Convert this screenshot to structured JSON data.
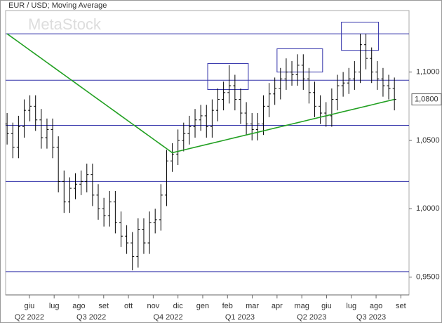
{
  "chart_data": {
    "type": "ohlc",
    "title": "EUR / USD; Moving Average",
    "watermark": "MetaStock",
    "x": [
      -0.9,
      -0.67,
      -0.44,
      -0.21,
      0.02,
      0.25,
      0.48,
      0.71,
      0.94,
      1.17,
      1.4,
      1.63,
      1.86,
      2.09,
      2.32,
      2.55,
      2.78,
      3.01,
      3.24,
      3.47,
      3.7,
      3.93,
      4.16,
      4.39,
      4.62,
      4.85,
      5.08,
      5.31,
      5.54,
      5.77,
      6.0,
      6.23,
      6.46,
      6.69,
      6.92,
      7.15,
      7.38,
      7.61,
      7.84,
      8.07,
      8.3,
      8.53,
      8.76,
      8.99,
      9.22,
      9.45,
      9.68,
      9.91,
      10.14,
      10.37,
      10.6,
      10.83,
      11.06,
      11.29,
      11.52,
      11.75,
      11.98,
      12.21,
      12.44,
      12.67,
      12.9,
      13.13,
      13.36,
      13.59,
      13.82,
      14.05,
      14.28,
      14.51,
      14.74
    ],
    "open": [
      1.062,
      1.055,
      1.045,
      1.06,
      1.072,
      1.075,
      1.065,
      1.052,
      1.058,
      1.045,
      1.02,
      1.005,
      1.015,
      1.018,
      1.02,
      1.025,
      1.01,
      1.0,
      0.995,
      1.005,
      0.99,
      0.98,
      0.975,
      0.965,
      0.985,
      0.975,
      0.99,
      0.992,
      1.01,
      1.035,
      1.04,
      1.05,
      1.055,
      1.06,
      1.065,
      1.068,
      1.06,
      1.072,
      1.08,
      1.085,
      1.09,
      1.08,
      1.07,
      1.062,
      1.058,
      1.062,
      1.075,
      1.084,
      1.088,
      1.095,
      1.1,
      1.098,
      1.105,
      1.095,
      1.085,
      1.075,
      1.07,
      1.068,
      1.08,
      1.09,
      1.092,
      1.095,
      1.1,
      1.12,
      1.11,
      1.1,
      1.095,
      1.09,
      1.088
    ],
    "high": [
      1.07,
      1.063,
      1.068,
      1.08,
      1.083,
      1.083,
      1.073,
      1.066,
      1.066,
      1.053,
      1.028,
      1.023,
      1.026,
      1.028,
      1.033,
      1.033,
      1.018,
      1.008,
      1.013,
      1.013,
      0.998,
      0.988,
      0.983,
      0.993,
      0.993,
      0.998,
      1.0,
      1.018,
      1.043,
      1.048,
      1.058,
      1.063,
      1.068,
      1.073,
      1.076,
      1.076,
      1.08,
      1.088,
      1.093,
      1.105,
      1.098,
      1.088,
      1.078,
      1.07,
      1.07,
      1.083,
      1.092,
      1.096,
      1.103,
      1.11,
      1.108,
      1.113,
      1.113,
      1.103,
      1.093,
      1.083,
      1.078,
      1.088,
      1.098,
      1.1,
      1.103,
      1.108,
      1.128,
      1.128,
      1.118,
      1.108,
      1.103,
      1.098,
      1.096
    ],
    "low": [
      1.047,
      1.037,
      1.037,
      1.052,
      1.064,
      1.057,
      1.044,
      1.044,
      1.037,
      1.012,
      0.997,
      0.997,
      1.007,
      1.01,
      1.012,
      1.002,
      0.992,
      0.987,
      0.987,
      0.982,
      0.972,
      0.967,
      0.955,
      0.957,
      0.967,
      0.967,
      0.982,
      0.984,
      1.002,
      1.027,
      1.032,
      1.042,
      1.047,
      1.052,
      1.057,
      1.052,
      1.052,
      1.064,
      1.072,
      1.077,
      1.072,
      1.062,
      1.054,
      1.05,
      1.05,
      1.054,
      1.067,
      1.076,
      1.08,
      1.087,
      1.09,
      1.09,
      1.087,
      1.077,
      1.067,
      1.062,
      1.06,
      1.06,
      1.072,
      1.082,
      1.084,
      1.087,
      1.092,
      1.102,
      1.092,
      1.087,
      1.082,
      1.08,
      1.072
    ],
    "close": [
      1.055,
      1.045,
      1.06,
      1.072,
      1.075,
      1.065,
      1.052,
      1.058,
      1.045,
      1.02,
      1.005,
      1.015,
      1.018,
      1.02,
      1.025,
      1.01,
      1.0,
      0.995,
      1.005,
      0.99,
      0.98,
      0.975,
      0.965,
      0.985,
      0.975,
      0.99,
      0.992,
      1.01,
      1.035,
      1.04,
      1.05,
      1.055,
      1.06,
      1.065,
      1.068,
      1.06,
      1.072,
      1.08,
      1.085,
      1.09,
      1.08,
      1.07,
      1.062,
      1.058,
      1.062,
      1.075,
      1.084,
      1.088,
      1.095,
      1.1,
      1.098,
      1.105,
      1.095,
      1.085,
      1.075,
      1.07,
      1.068,
      1.08,
      1.09,
      1.092,
      1.095,
      1.1,
      1.12,
      1.11,
      1.1,
      1.095,
      1.09,
      1.088,
      1.08
    ],
    "bar_color": "#000000",
    "ma": {
      "color": "#22a022",
      "values": [
        1.128,
        1.125,
        1.122,
        1.119,
        1.116,
        1.113,
        1.11,
        1.107,
        1.104,
        1.101,
        1.098,
        1.095,
        1.092,
        1.089,
        1.086,
        1.083,
        1.08,
        1.077,
        1.074,
        1.071,
        1.068,
        1.065,
        1.062,
        1.059,
        1.056,
        1.053,
        1.05,
        1.047,
        1.044,
        1.041,
        1.042,
        1.043,
        1.044,
        1.045,
        1.046,
        1.047,
        1.048,
        1.049,
        1.05,
        1.051,
        1.052,
        1.053,
        1.054,
        1.055,
        1.056,
        1.057,
        1.058,
        1.059,
        1.06,
        1.061,
        1.062,
        1.063,
        1.064,
        1.065,
        1.066,
        1.067,
        1.068,
        1.069,
        1.07,
        1.071,
        1.072,
        1.073,
        1.074,
        1.075,
        1.076,
        1.077,
        1.078,
        1.079,
        1.08
      ]
    },
    "levels": [
      1.128,
      1.094,
      1.061,
      1.02,
      0.954
    ],
    "level_color": "#3333aa",
    "boxes": [
      {
        "x": [
          7.2,
          8.84
        ],
        "y": [
          1.0872,
          1.1062
        ]
      },
      {
        "x": [
          10.0,
          11.84
        ],
        "y": [
          1.1,
          1.117
        ]
      },
      {
        "x": [
          12.6,
          14.1
        ],
        "y": [
          1.1159,
          1.1365
        ]
      }
    ],
    "last_price": {
      "value": 1.08,
      "label": "1,0800"
    },
    "xlim": [
      -0.96,
      15.33
    ],
    "ylim": [
      0.937,
      1.145
    ],
    "xticks": [
      {
        "value": 0,
        "label": "giu"
      },
      {
        "value": 1,
        "label": "lug"
      },
      {
        "value": 2,
        "label": "ago"
      },
      {
        "value": 3,
        "label": "set"
      },
      {
        "value": 4,
        "label": "ott"
      },
      {
        "value": 5,
        "label": "nov"
      },
      {
        "value": 6,
        "label": "dic"
      },
      {
        "value": 7,
        "label": "gen"
      },
      {
        "value": 8,
        "label": "feb"
      },
      {
        "value": 9,
        "label": "mar"
      },
      {
        "value": 10,
        "label": "apr"
      },
      {
        "value": 11,
        "label": "mag"
      },
      {
        "value": 12,
        "label": "giu"
      },
      {
        "value": 13,
        "label": "lug"
      },
      {
        "value": 14,
        "label": "ago"
      },
      {
        "value": 15,
        "label": "set"
      }
    ],
    "quarters": [
      {
        "value": 0,
        "label": "Q2 2022"
      },
      {
        "value": 2.5,
        "label": "Q3 2022"
      },
      {
        "value": 5.6,
        "label": "Q4 2022"
      },
      {
        "value": 8.5,
        "label": "Q1 2023"
      },
      {
        "value": 11.4,
        "label": "Q2 2023"
      },
      {
        "value": 13.8,
        "label": "Q3 2023"
      }
    ],
    "yticks": [
      {
        "value": 0.95,
        "label": "0,9500"
      },
      {
        "value": 1.0,
        "label": "1,0000"
      },
      {
        "value": 1.05,
        "label": "1,0500"
      },
      {
        "value": 1.1,
        "label": "1,1000"
      }
    ]
  }
}
